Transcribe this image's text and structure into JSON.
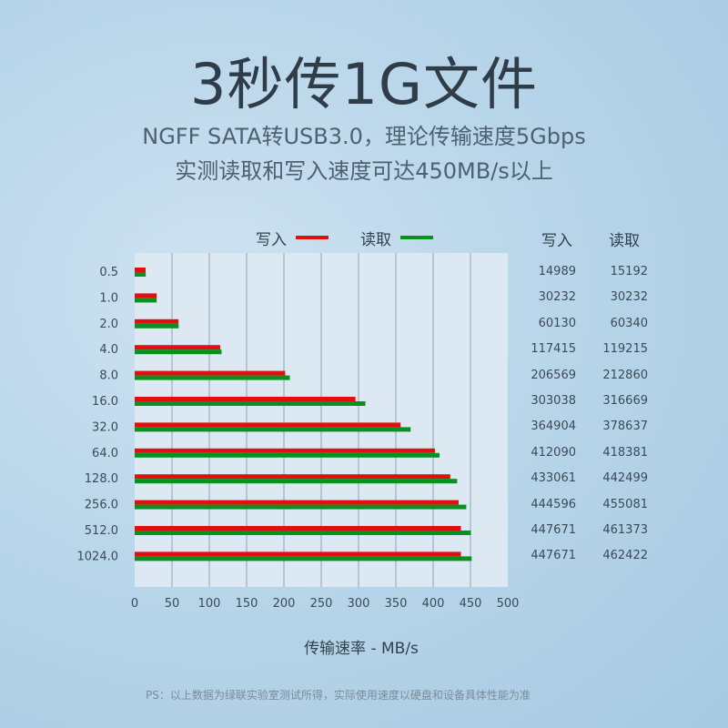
{
  "heading": {
    "title": "3秒传1G文件",
    "subtitle_line1": "NGFF SATA转USB3.0，理论传输速度5Gbps",
    "subtitle_line2": "实测读取和写入速度可达450MB/s以上"
  },
  "table": {
    "write_header": "写入",
    "read_header": "读取"
  },
  "footnote": "PS：以上数据为绿联实验室测试所得，实际使用速度以硬盘和设备具体性能为准",
  "colors": {
    "write": "#e01010",
    "read": "#0a9020",
    "plot_bg": "#dce9f3",
    "grid": "#4a6a8c"
  },
  "chart_data": {
    "type": "bar",
    "orientation": "horizontal",
    "xlabel": "传输速率 - MB/s",
    "xlim": [
      0,
      500
    ],
    "xticks": [
      "0",
      "50",
      "100",
      "150",
      "200",
      "250",
      "300",
      "350",
      "400",
      "450",
      "500"
    ],
    "grid": "vertical",
    "legend": "top-center",
    "categories": [
      "0.5",
      "1.0",
      "2.0",
      "4.0",
      "8.0",
      "16.0",
      "32.0",
      "64.0",
      "128.0",
      "256.0",
      "512.0",
      "1024.0"
    ],
    "series": [
      {
        "name": "写入",
        "values": [
          14.6,
          29.5,
          58.7,
          114.7,
          201.7,
          295.9,
          356.4,
          402.4,
          422.9,
          434.2,
          437.2,
          437.2
        ]
      },
      {
        "name": "读取",
        "values": [
          14.8,
          29.5,
          58.9,
          116.4,
          207.9,
          309.2,
          369.8,
          408.6,
          432.1,
          444.4,
          450.6,
          451.6
        ]
      }
    ],
    "table_values": {
      "write": [
        "14989",
        "30232",
        "60130",
        "117415",
        "206569",
        "303038",
        "364904",
        "412090",
        "433061",
        "444596",
        "447671",
        "447671"
      ],
      "read": [
        "15192",
        "30232",
        "60340",
        "119215",
        "212860",
        "316669",
        "378637",
        "418381",
        "442499",
        "455081",
        "461373",
        "462422"
      ]
    }
  }
}
